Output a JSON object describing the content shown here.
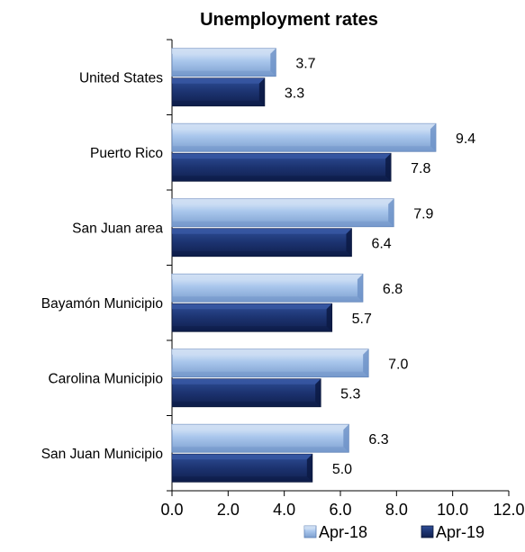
{
  "chart_data": {
    "type": "bar",
    "orientation": "horizontal",
    "title": "Unemployment rates",
    "categories": [
      "United States",
      "Puerto Rico",
      "San Juan area",
      "Bayamón Municipio",
      "Carolina Municipio",
      "San Juan Municipio"
    ],
    "series": [
      {
        "name": "Apr-18",
        "values": [
          3.7,
          9.4,
          7.9,
          6.8,
          7.0,
          6.3
        ],
        "color": "#8EB4E3"
      },
      {
        "name": "Apr-19",
        "values": [
          3.3,
          7.8,
          6.4,
          5.7,
          5.3,
          5.0
        ],
        "color": "#1F3A7A"
      }
    ],
    "xlim": [
      0,
      12
    ],
    "xticks": [
      "0.0",
      "2.0",
      "4.0",
      "6.0",
      "8.0",
      "10.0",
      "12.0"
    ],
    "grid": false,
    "legend": "bottom-right",
    "data_label_format": "one-decimal"
  }
}
